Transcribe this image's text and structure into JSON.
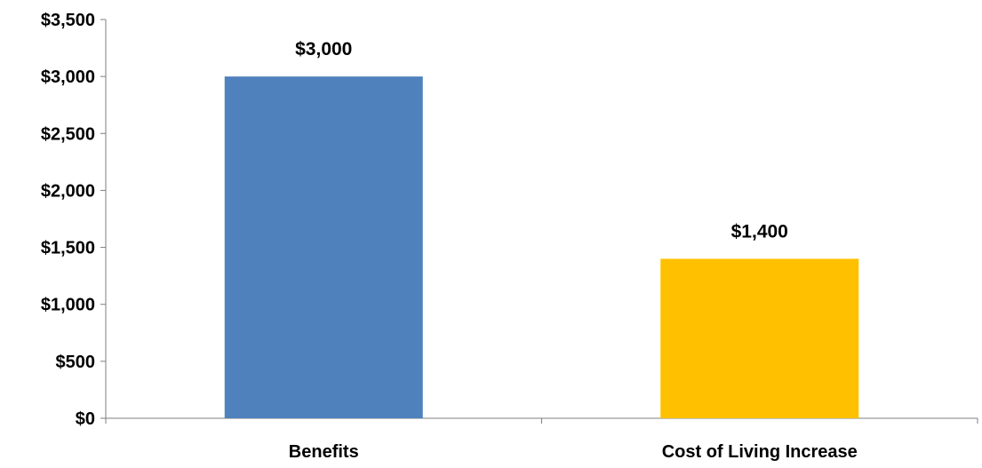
{
  "chart_data": {
    "type": "bar",
    "title": "",
    "xlabel": "",
    "ylabel": "",
    "categories": [
      "Benefits",
      "Cost of Living Increase"
    ],
    "values": [
      3000,
      1400
    ],
    "value_labels": [
      "$3,000",
      "$1,400"
    ],
    "bar_colors": [
      "#4f81bd",
      "#ffc000"
    ],
    "ylim": [
      0,
      3500
    ],
    "yticks": [
      0,
      500,
      1000,
      1500,
      2000,
      2500,
      3000,
      3500
    ],
    "ytick_labels": [
      "$0",
      "$500",
      "$1,000",
      "$1,500",
      "$2,000",
      "$2,500",
      "$3,000",
      "$3,500"
    ],
    "grid": false,
    "legend": "none"
  }
}
